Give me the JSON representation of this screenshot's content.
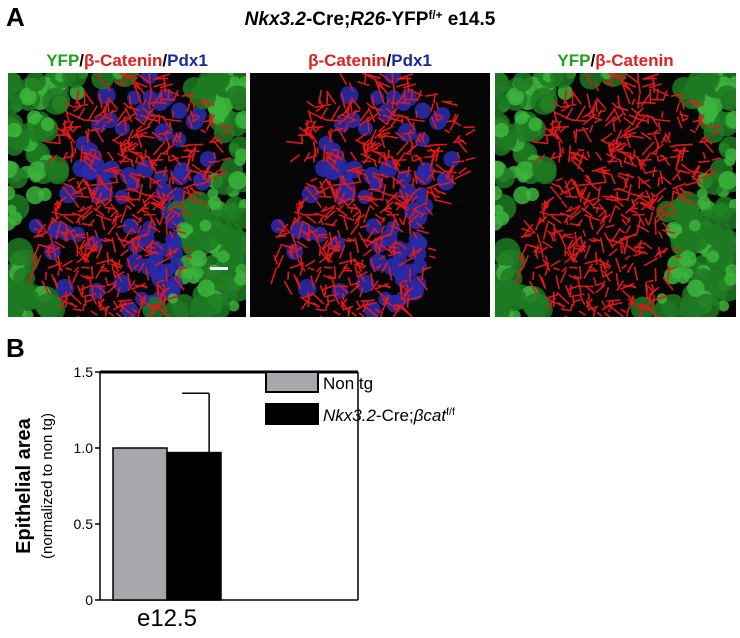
{
  "panel_a": {
    "label": "A",
    "title": [
      {
        "text": "Nkx3.2",
        "italic": true
      },
      {
        "text": "-Cre;"
      },
      {
        "text": "R26",
        "italic": true
      },
      {
        "text": "-YFP"
      },
      {
        "text": "f/+",
        "sup": true
      },
      {
        "text": " e14.5"
      }
    ],
    "images": [
      {
        "label": [
          {
            "text": "YFP",
            "color": "#22a020"
          },
          {
            "text": "/",
            "color": "#000000"
          },
          {
            "text": "β-Catenin",
            "color": "#e02020"
          },
          {
            "text": "/",
            "color": "#000000"
          },
          {
            "text": "Pdx1",
            "color": "#1a2a9a"
          }
        ]
      },
      {
        "label": [
          {
            "text": "β-Catenin",
            "color": "#e02020"
          },
          {
            "text": "/",
            "color": "#000000"
          },
          {
            "text": "Pdx1",
            "color": "#1a2a9a"
          }
        ]
      },
      {
        "label": [
          {
            "text": "YFP",
            "color": "#22a020"
          },
          {
            "text": "/",
            "color": "#000000"
          },
          {
            "text": "β-Catenin",
            "color": "#e02020"
          }
        ]
      }
    ]
  },
  "chart_data": {
    "type": "bar",
    "label": "B",
    "ylabel": "Epithelial area",
    "ylabel_sub": "(normalized to non tg)",
    "categories": [
      "e12.5"
    ],
    "series": [
      {
        "name": [
          {
            "text": "Non tg"
          }
        ],
        "color": "#a7a7ab",
        "values": [
          1.0
        ]
      },
      {
        "name": [
          {
            "text": "Nkx3.2",
            "italic": true
          },
          {
            "text": "-Cre;"
          },
          {
            "text": "βcat",
            "italic": true
          },
          {
            "text": "f/f",
            "sup": true
          }
        ],
        "color": "#000000",
        "values": [
          0.97
        ],
        "errors": [
          0.39
        ]
      }
    ],
    "ylim": [
      0,
      1.5
    ],
    "yticks": [
      0,
      0.5,
      {
        "value": 1,
        "label": "1.0"
      },
      1.5
    ]
  }
}
